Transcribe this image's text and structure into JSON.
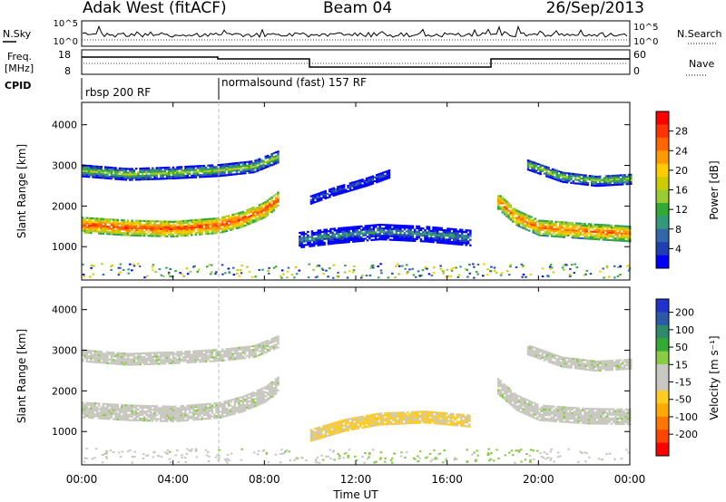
{
  "header": {
    "station": "Adak West (fitACF)",
    "beam": "Beam 04",
    "date": "26/Sep/2013"
  },
  "strips": {
    "nsky_label": "N.Sky",
    "nsky_ticks": [
      "10^5",
      "10^0"
    ],
    "nsearch_label": "N.Search",
    "nsearch_ticks": [
      "10^5",
      "10^0"
    ],
    "freq_label_1": "Freq.",
    "freq_label_2": "[MHz]",
    "freq_ticks": [
      "18",
      "8"
    ],
    "nave_label": "Nave",
    "nave_ticks": [
      "60",
      "0"
    ],
    "cpid_label": "CPID",
    "cpid_segments": [
      {
        "label": "rbsp 200 RF",
        "start_hour": 0,
        "end_hour": 6
      },
      {
        "label": "normalsound (fast) 157 RF",
        "start_hour": 6,
        "end_hour": 24
      }
    ]
  },
  "colorbars": {
    "power": {
      "title": "Power [dB]",
      "ticks": [
        "28",
        "24",
        "20",
        "16",
        "12",
        "8",
        "4"
      ],
      "colors": [
        "#ff0000",
        "#ff3300",
        "#ff6600",
        "#ff9900",
        "#ffcc00",
        "#cccc00",
        "#99cc33",
        "#33aa33",
        "#33997a",
        "#3366aa",
        "#1f3fb0",
        "#0000ff"
      ]
    },
    "velocity": {
      "title": "Velocity [m s⁻¹]",
      "ticks": [
        "200",
        "100",
        "50",
        "15",
        "-15",
        "-50",
        "-100",
        "-200"
      ],
      "colors": [
        "#2233cc",
        "#2a5aa8",
        "#2f8a6a",
        "#33aa33",
        "#88cc44",
        "#c8c8c0",
        "#c8c8c0",
        "#ffcc22",
        "#ffaa00",
        "#ff7700",
        "#ff4400",
        "#ff0000"
      ]
    }
  },
  "axes": {
    "ylabel": "Slant Range [km]",
    "xlabel": "Time UT",
    "xticks": [
      "00:00",
      "04:00",
      "08:00",
      "12:00",
      "16:00",
      "20:00",
      "00:00"
    ],
    "yticks": [
      "4000",
      "3000",
      "2000",
      "1000"
    ]
  },
  "chart_data": [
    {
      "type": "heatmap",
      "name": "Power",
      "xlim_hours": [
        0,
        24
      ],
      "ylim_km": [
        180,
        4550
      ],
      "echo_bands": [
        {
          "range_km": [
            [
              0,
              1520
            ],
            [
              2,
              1450
            ],
            [
              4,
              1420
            ],
            [
              6,
              1510
            ],
            [
              7,
              1660
            ],
            [
              8,
              1900
            ],
            [
              8.6,
              2160
            ]
          ],
          "width_km": 380,
          "power_db": 27
        },
        {
          "range_km": [
            [
              0,
              2850
            ],
            [
              2,
              2760
            ],
            [
              4,
              2800
            ],
            [
              6,
              2860
            ],
            [
              7.5,
              2950
            ],
            [
              8.6,
              3200
            ]
          ],
          "width_km": 280,
          "power_db": 15
        },
        {
          "range_km": [
            [
              10,
              2150
            ],
            [
              11,
              2350
            ],
            [
              12.5,
              2600
            ],
            [
              13.5,
              2800
            ]
          ],
          "width_km": 220,
          "power_db": 6
        },
        {
          "range_km": [
            [
              9.5,
              1150
            ],
            [
              11,
              1250
            ],
            [
              13,
              1350
            ],
            [
              15,
              1300
            ],
            [
              17,
              1200
            ]
          ],
          "width_km": 380,
          "power_db": 9
        },
        {
          "range_km": [
            [
              18.2,
              2100
            ],
            [
              19,
              1700
            ],
            [
              20,
              1450
            ],
            [
              22,
              1370
            ],
            [
              24,
              1300
            ]
          ],
          "width_km": 380,
          "power_db": 25
        },
        {
          "range_km": [
            [
              19.5,
              3000
            ],
            [
              21,
              2700
            ],
            [
              22.5,
              2600
            ],
            [
              24,
              2650
            ]
          ],
          "width_km": 250,
          "power_db": 15
        }
      ]
    },
    {
      "type": "heatmap",
      "name": "Velocity",
      "xlim_hours": [
        0,
        24
      ],
      "ylim_km": [
        180,
        4550
      ],
      "echo_bands": [
        {
          "range_km": [
            [
              0,
              1520
            ],
            [
              2,
              1450
            ],
            [
              4,
              1420
            ],
            [
              6,
              1510
            ],
            [
              7,
              1660
            ],
            [
              8,
              1900
            ],
            [
              8.6,
              2160
            ]
          ],
          "width_km": 380,
          "velocity": 0
        },
        {
          "range_km": [
            [
              0,
              2850
            ],
            [
              2,
              2760
            ],
            [
              4,
              2800
            ],
            [
              6,
              2860
            ],
            [
              7.5,
              2950
            ],
            [
              8.6,
              3200
            ]
          ],
          "width_km": 280,
          "velocity": 0
        },
        {
          "range_km": [
            [
              10,
              900
            ],
            [
              11.5,
              1150
            ],
            [
              13,
              1300
            ],
            [
              15,
              1350
            ],
            [
              17,
              1250
            ]
          ],
          "width_km": 300,
          "velocity": -50
        },
        {
          "range_km": [
            [
              18.2,
              2100
            ],
            [
              19,
              1700
            ],
            [
              20,
              1450
            ],
            [
              22,
              1370
            ],
            [
              24,
              1350
            ]
          ],
          "width_km": 380,
          "velocity": 0
        },
        {
          "range_km": [
            [
              19.5,
              3000
            ],
            [
              21,
              2700
            ],
            [
              22.5,
              2600
            ],
            [
              24,
              2650
            ]
          ],
          "width_km": 250,
          "velocity": 0
        }
      ]
    }
  ]
}
